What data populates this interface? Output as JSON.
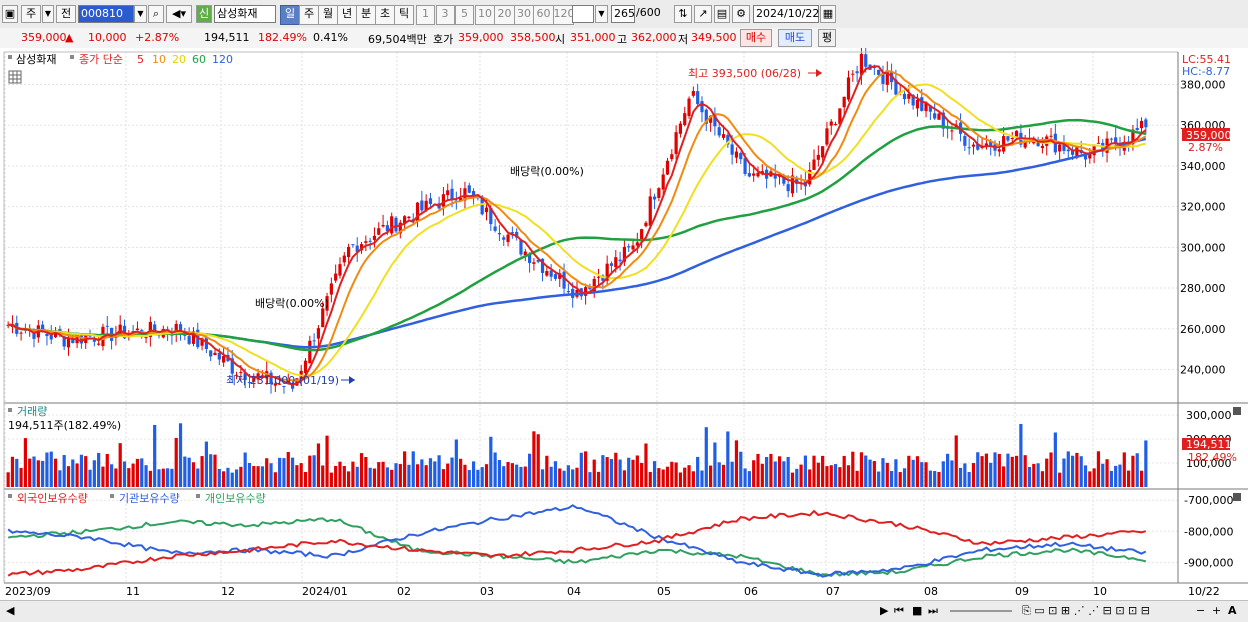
{
  "toolbar": {
    "market": "주",
    "prev": "전",
    "code": "000810",
    "shin": "신",
    "name": "삼성화재",
    "periods": [
      "일",
      "주",
      "월",
      "년",
      "분",
      "초",
      "틱"
    ],
    "active_period": "일",
    "intervals": [
      "1",
      "3",
      "5",
      "10",
      "20",
      "30",
      "60",
      "120"
    ],
    "count": "265",
    "count_max": "/600",
    "date": "2024/10/22"
  },
  "quote": {
    "price": "359,000",
    "arrow": "▲",
    "change": "10,000",
    "rate": "+2.87%",
    "volume": "194,511",
    "vol_rate": "182.49%",
    "turnover": "0.41%",
    "amount": "69,504백만",
    "hoga_label": "호가",
    "ask": "359,000",
    "bid": "358,500",
    "open_label": "시",
    "open": "351,000",
    "high_label": "고",
    "high": "362,000",
    "low_label": "저",
    "low": "349,500",
    "buy": "매수",
    "sell": "매도",
    "avg": "평"
  },
  "price_panel": {
    "legend_name": "삼성화재",
    "legend_ma_label": "종가 단순",
    "ma_periods": [
      "5",
      "10",
      "20",
      "60",
      "120"
    ],
    "lc": "LC:55.41",
    "hc": "HC:-8.77",
    "cur_price": "359,000",
    "cur_rate": "2.87%",
    "y_ticks": [
      "380,000",
      "360,000",
      "340,000",
      "320,000",
      "300,000",
      "280,000",
      "260,000",
      "240,000"
    ],
    "annotations": {
      "high": "최고 393,500 (06/28)",
      "low": "최저 231,000 (01/19)",
      "div1": "배당락(0.00%)",
      "div2": "배당락(0.00%)"
    }
  },
  "volume_panel": {
    "title": "거래량",
    "value": "194,511주(182.49%)",
    "y_ticks": [
      "300,000",
      "200,000",
      "100,000"
    ],
    "cur": "194,511",
    "cur_rate": "182.49%"
  },
  "holding_panel": {
    "legend": [
      "외국인보유수량",
      "기관보유수량",
      "개인보유수량"
    ],
    "y_ticks": [
      "-700,000",
      "-800,000",
      "-900,000"
    ]
  },
  "x_labels": [
    "2023/09",
    "11",
    "12",
    "2024/01",
    "02",
    "03",
    "04",
    "05",
    "06",
    "07",
    "08",
    "09",
    "10"
  ],
  "x_last": "10/22",
  "colors": {
    "up": "#e00000",
    "down": "#1f5ee6",
    "ma5": "#e02020",
    "ma10": "#f08a10",
    "ma20": "#f0e020",
    "ma60": "#20a040",
    "ma120": "#3060e0",
    "foreign": "#e02020",
    "inst": "#3060e0",
    "indiv": "#30a060"
  },
  "chart_data": {
    "type": "candlestick",
    "title": "삼성화재",
    "x": [
      "2023/09",
      "11",
      "12",
      "2024/01",
      "02",
      "03",
      "04",
      "05",
      "06",
      "07",
      "08",
      "09",
      "10",
      "10/22"
    ],
    "close_keypoints": [
      262000,
      255000,
      258000,
      260000,
      240000,
      231000,
      300000,
      315000,
      328000,
      300000,
      278000,
      300000,
      375000,
      335000,
      330000,
      393500,
      370000,
      350000,
      355000,
      345000,
      359000
    ],
    "high_value": 393500,
    "high_date": "06/28",
    "low_value": 231000,
    "low_date": "01/19",
    "last_close": 359000,
    "last_volume": 194511,
    "ylim": [
      225000,
      395000
    ]
  }
}
